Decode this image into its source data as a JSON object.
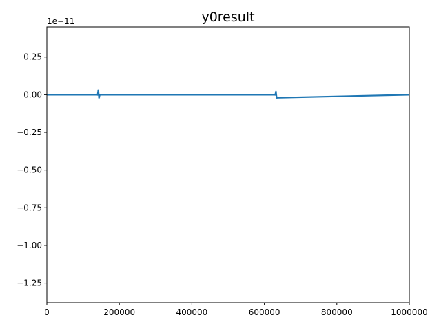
{
  "chart_data": {
    "type": "line",
    "title": "y0result",
    "xlabel": "",
    "ylabel": "",
    "offset_label": "1e−11",
    "xlim": [
      0,
      1000000
    ],
    "ylim": [
      -1.38,
      0.45
    ],
    "y_scale_exponent": -11,
    "xticks": [
      0,
      200000,
      400000,
      600000,
      800000,
      1000000
    ],
    "xtick_labels": [
      "0",
      "200000",
      "400000",
      "600000",
      "800000",
      "1000000"
    ],
    "yticks": [
      0.25,
      0.0,
      -0.25,
      -0.5,
      -0.75,
      -1.0,
      -1.25
    ],
    "ytick_labels": [
      "0.25",
      "0.00",
      "−0.25",
      "−0.50",
      "−0.75",
      "−1.00",
      "−1.25"
    ],
    "grid": false,
    "series_color": "#1f77b4",
    "series": [
      {
        "name": "",
        "x": [
          0,
          140000,
          142000,
          144000,
          146000,
          630000,
          632000,
          634000,
          1000000
        ],
        "y": [
          0.0,
          0.0,
          0.03,
          -0.02,
          0.0,
          0.0,
          0.02,
          -0.02,
          0.0
        ]
      }
    ]
  }
}
